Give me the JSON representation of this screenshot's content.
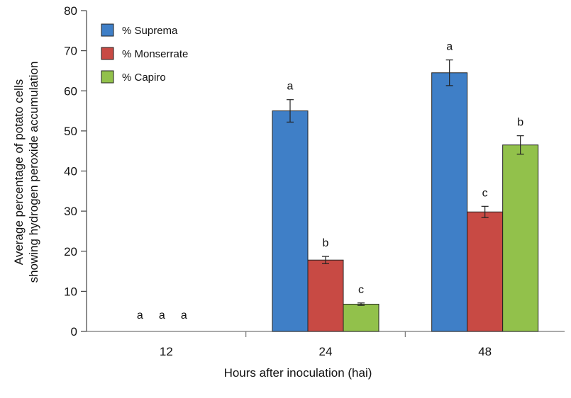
{
  "chart_data": {
    "type": "bar",
    "title": "",
    "xlabel": "Hours after inoculation (hai)",
    "ylabel_lines": [
      "Average percentage of potato cells",
      "showing hydrogen peroxide accumulation"
    ],
    "categories": [
      "12",
      "24",
      "48"
    ],
    "ylim": [
      0,
      80
    ],
    "yticks": [
      0,
      10,
      20,
      30,
      40,
      50,
      60,
      70,
      80
    ],
    "legend_position": "top-left",
    "grid": false,
    "series": [
      {
        "name": "% Suprema",
        "color": "#3f7fc7",
        "values": [
          0,
          55,
          64.5
        ],
        "errors": [
          0,
          2.8,
          3.2
        ],
        "labels": [
          "a",
          "a",
          "a"
        ]
      },
      {
        "name": "% Monserrate",
        "color": "#c84a44",
        "values": [
          0,
          17.8,
          29.8
        ],
        "errors": [
          0,
          0.9,
          1.4
        ],
        "labels": [
          "a",
          "b",
          "c"
        ]
      },
      {
        "name": "% Capiro",
        "color": "#92c14b",
        "values": [
          0,
          6.8,
          46.5
        ],
        "errors": [
          0,
          0.3,
          2.3
        ],
        "labels": [
          "a",
          "c",
          "b"
        ]
      }
    ]
  }
}
